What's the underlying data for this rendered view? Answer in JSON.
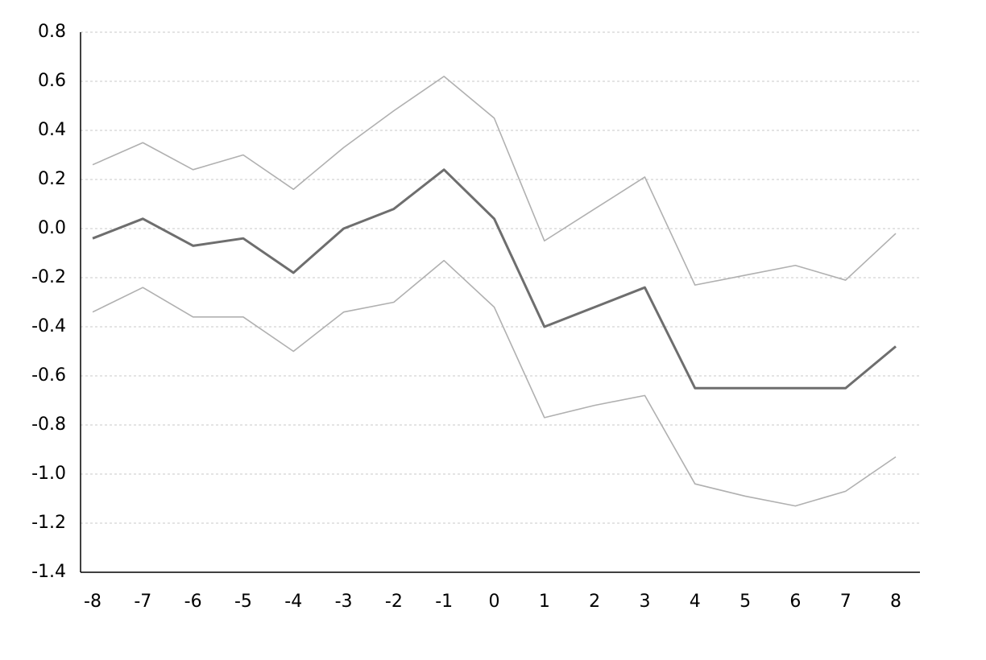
{
  "chart_data": {
    "type": "line",
    "categories": [
      "-8",
      "-7",
      "-6",
      "-5",
      "-4",
      "-3",
      "-2",
      "-1",
      "0",
      "1",
      "2",
      "3",
      "4",
      "5",
      "6",
      "7",
      "8"
    ],
    "series": [
      {
        "color": "#b0b0b0",
        "values": [
          0.26,
          0.35,
          0.24,
          0.3,
          0.16,
          0.33,
          0.48,
          0.62,
          0.45,
          -0.05,
          0.08,
          0.21,
          -0.23,
          -0.19,
          -0.15,
          -0.21,
          -0.02
        ]
      },
      {
        "color": "#6e6e6e",
        "values": [
          -0.04,
          0.04,
          -0.07,
          -0.04,
          -0.18,
          0.0,
          0.08,
          0.24,
          0.04,
          -0.4,
          -0.32,
          -0.24,
          -0.65,
          -0.65,
          -0.65,
          -0.65,
          -0.48
        ]
      },
      {
        "color": "#b0b0b0",
        "values": [
          -0.34,
          -0.24,
          -0.36,
          -0.36,
          -0.5,
          -0.34,
          -0.3,
          -0.13,
          -0.32,
          -0.77,
          -0.72,
          -0.68,
          -1.04,
          -1.09,
          -1.13,
          -1.07,
          -0.93
        ]
      }
    ],
    "ylim": [
      -1.4,
      0.8
    ],
    "yticks": [
      0.8,
      0.6,
      0.4,
      0.2,
      {
        "value": 0,
        "label": "0.0"
      },
      -0.2,
      -0.4,
      -0.6,
      -0.8,
      {
        "value": -1,
        "label": "-1.0"
      },
      -1.2,
      -1.4
    ],
    "grid": true
  }
}
